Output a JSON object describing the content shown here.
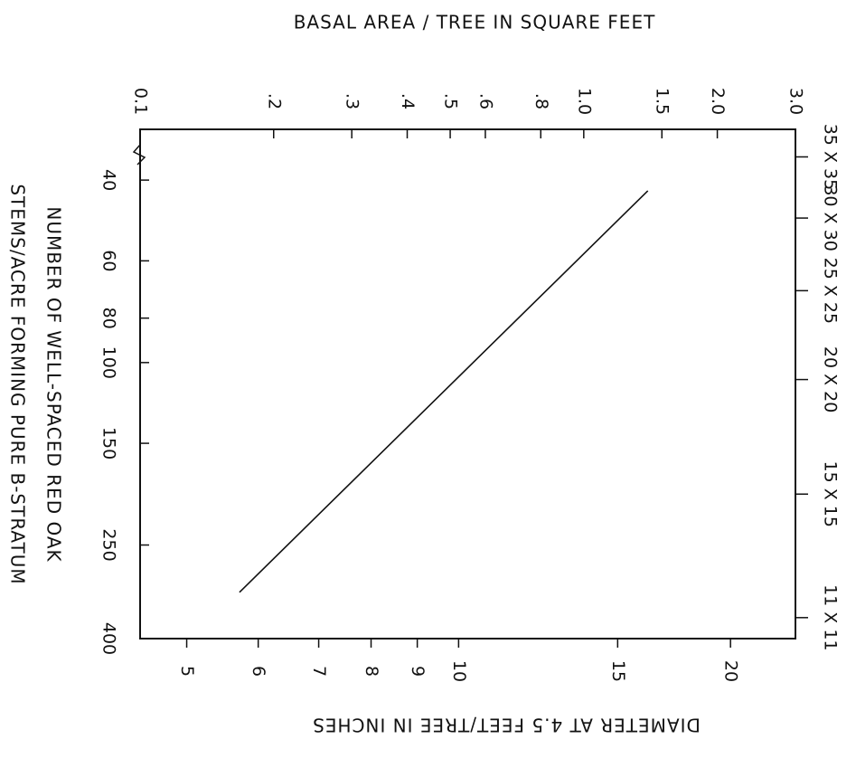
{
  "chart_data": {
    "type": "line",
    "title": "BASAL AREA / TREE IN SQUARE FEET",
    "xlabel": "DIAMETER AT 4.5 FEET/TREE IN INCHES",
    "ylabel": [
      "NUMBER OF WELL-SPACED RED OAK",
      "STEMS/ACRE FORMING PURE B-STRATUM"
    ],
    "log_scale": true,
    "x": [
      5.72,
      16.2
    ],
    "series": [
      {
        "color": "#111111",
        "values": [
          317,
          42.2
        ]
      }
    ],
    "xlim": [
      4.44,
      23.6
    ],
    "xticks": [
      5,
      6,
      7,
      8,
      9,
      10,
      15,
      20
    ],
    "x2lim": [
      0.1,
      3
    ],
    "x2ticks": [
      0.1,
      {
        "value": 0.2,
        "label": ".2"
      },
      {
        "value": 0.3,
        "label": ".3"
      },
      {
        "value": 0.4,
        "label": ".4"
      },
      {
        "value": 0.5,
        "label": ".5"
      },
      {
        "value": 0.6,
        "label": ".6"
      },
      {
        "value": 0.8,
        "label": ".8"
      },
      {
        "value": 1,
        "label": "1.0"
      },
      1.5,
      {
        "value": 2,
        "label": "2.0"
      },
      {
        "value": 3,
        "label": "3.0"
      }
    ],
    "ylim": [
      400,
      31
    ],
    "yticks": [
      40,
      60,
      80,
      100,
      150,
      250,
      400
    ],
    "y2lim": [
      400,
      31
    ],
    "y2ticks": [
      {
        "value": 35.6,
        "label": "35 X 35"
      },
      {
        "value": 48.4,
        "label": "30 X 30"
      },
      {
        "value": 69.7,
        "label": "25 X 25"
      },
      {
        "value": 108.9,
        "label": "20 X 20"
      },
      {
        "value": 193.6,
        "label": "15 X 15"
      },
      {
        "value": 360,
        "label": "11 X 11"
      }
    ]
  }
}
